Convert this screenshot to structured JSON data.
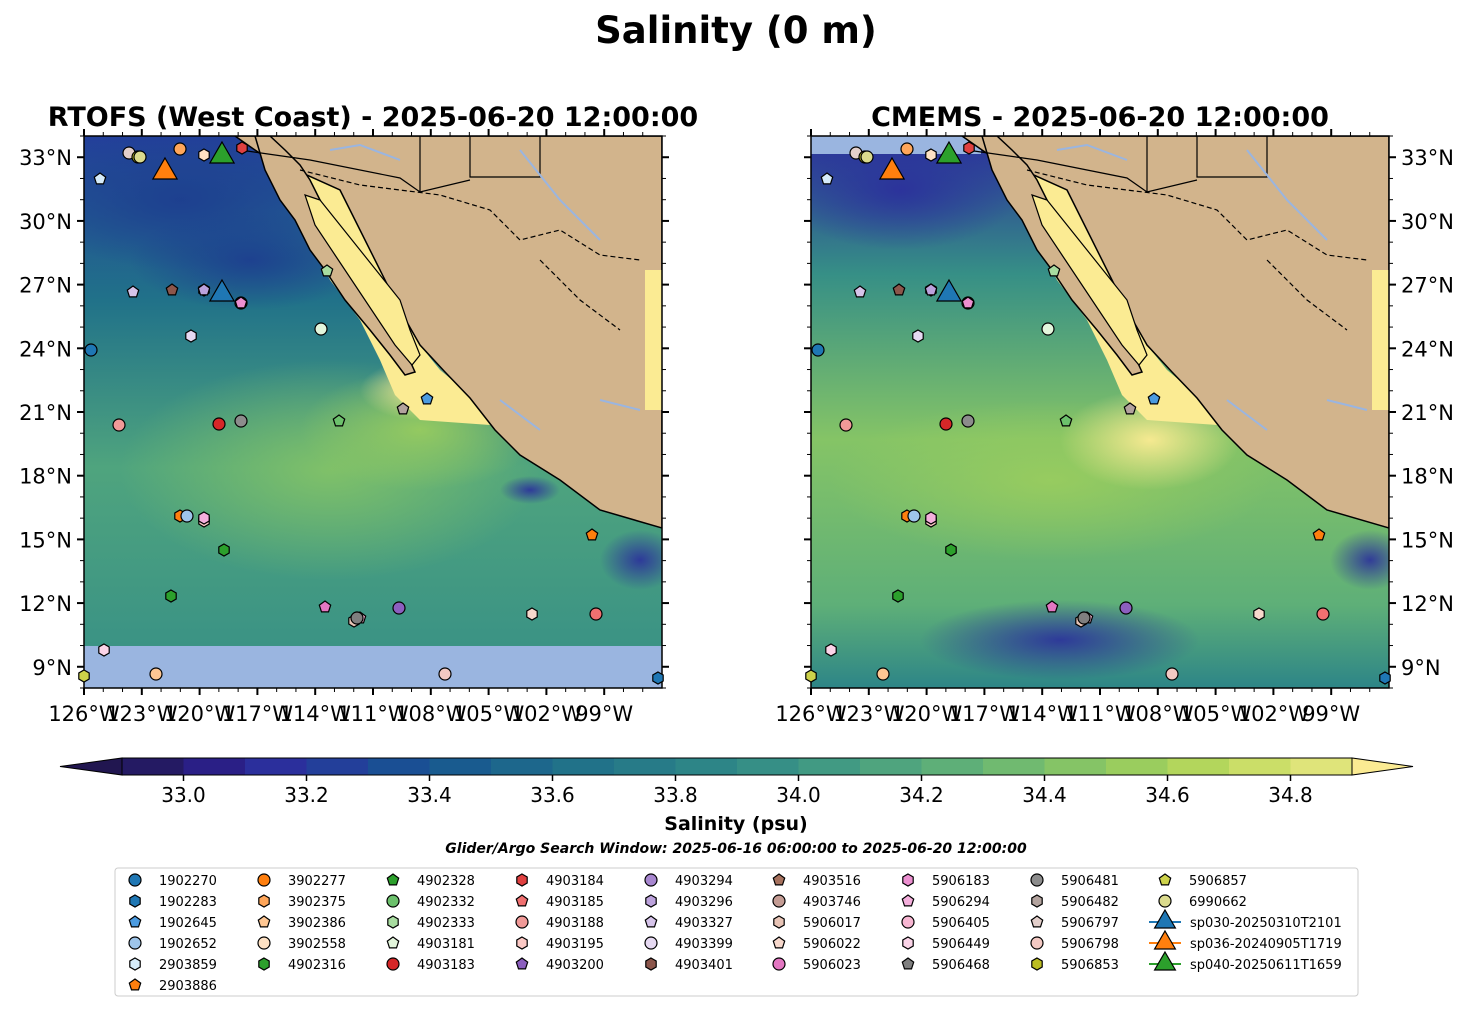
{
  "figure_title": "Salinity (0 m)",
  "colorbar": {
    "label": "Salinity (psu)",
    "ticks": [
      "33.0",
      "33.2",
      "33.4",
      "33.6",
      "33.8",
      "34.0",
      "34.2",
      "34.4",
      "34.6",
      "34.8"
    ],
    "min": 32.9,
    "max": 34.9,
    "step": 0.1,
    "colors": [
      "#241a63",
      "#2a1f86",
      "#2b2f9c",
      "#233f9a",
      "#1a4f94",
      "#195b8f",
      "#1d678c",
      "#217289",
      "#277b88",
      "#2d8587",
      "#368f86",
      "#419a83",
      "#4fa47e",
      "#5eaf78",
      "#70ba70",
      "#85c466",
      "#9acd5e",
      "#b3d65c",
      "#cbde68",
      "#dfe47a"
    ],
    "extend_high_color": "#fbeb93",
    "extend_low_color": "#211650"
  },
  "search_window": "Glider/Argo Search Window: 2025-06-16 06:00:00 to 2025-06-20 12:00:00",
  "chart_data": [
    {
      "type": "map",
      "title": "RTOFS (West Coast) - 2025-06-20 12:00:00",
      "lon_range": [
        -126,
        -96
      ],
      "lat_range": [
        8,
        34
      ],
      "x_ticks": [
        "126°W",
        "123°W",
        "120°W",
        "117°W",
        "114°W",
        "111°W",
        "108°W",
        "105°W",
        "102°W",
        "99°W"
      ],
      "y_ticks": [
        "33°N",
        "30°N",
        "27°N",
        "24°N",
        "21°N",
        "18°N",
        "15°N",
        "12°N",
        "9°N"
      ],
      "no_data_band_below_lat": 10
    },
    {
      "type": "map",
      "title": "CMEMS - 2025-06-20 12:00:00",
      "lon_range": [
        -126,
        -96
      ],
      "lat_range": [
        8,
        34
      ],
      "x_ticks": [
        "126°W",
        "123°W",
        "120°W",
        "117°W",
        "114°W",
        "111°W",
        "108°W",
        "105°W",
        "102°W",
        "99°W"
      ],
      "y_ticks": [
        "33°N",
        "30°N",
        "27°N",
        "24°N",
        "21°N",
        "18°N",
        "15°N",
        "12°N",
        "9°N"
      ]
    }
  ],
  "legend": [
    {
      "label": "1902270",
      "marker": "circle",
      "color": "#1f77b4"
    },
    {
      "label": "1902283",
      "marker": "hexagon",
      "color": "#1f77b4"
    },
    {
      "label": "1902645",
      "marker": "pentagon",
      "color": "#4b9be0"
    },
    {
      "label": "1902652",
      "marker": "circle",
      "color": "#9ec5ea"
    },
    {
      "label": "2903859",
      "marker": "hexagon",
      "color": "#d6ecfa"
    },
    {
      "label": "2903886",
      "marker": "pentagon",
      "color": "#ff7f0e"
    },
    {
      "label": "3902277",
      "marker": "circle",
      "color": "#ff7f0e"
    },
    {
      "label": "3902375",
      "marker": "hexagon",
      "color": "#ffa65a"
    },
    {
      "label": "3902386",
      "marker": "pentagon",
      "color": "#ffc793"
    },
    {
      "label": "3902558",
      "marker": "circle",
      "color": "#ffe2c4"
    },
    {
      "label": "4902316",
      "marker": "hexagon",
      "color": "#2ca02c"
    },
    {
      "label": "4902328",
      "marker": "pentagon",
      "color": "#2ca02c"
    },
    {
      "label": "4902332",
      "marker": "circle",
      "color": "#6cc16c"
    },
    {
      "label": "4902333",
      "marker": "hexagon",
      "color": "#a8dca0"
    },
    {
      "label": "4903181",
      "marker": "pentagon",
      "color": "#e3f6dc"
    },
    {
      "label": "4903183",
      "marker": "circle",
      "color": "#d62728"
    },
    {
      "label": "4903184",
      "marker": "hexagon",
      "color": "#e04040"
    },
    {
      "label": "4903185",
      "marker": "pentagon",
      "color": "#f07070"
    },
    {
      "label": "4903188",
      "marker": "circle",
      "color": "#f19a98"
    },
    {
      "label": "4903195",
      "marker": "hexagon",
      "color": "#fcc9c5"
    },
    {
      "label": "4903200",
      "marker": "pentagon",
      "color": "#8c5fbf"
    },
    {
      "label": "4903294",
      "marker": "circle",
      "color": "#a887d0"
    },
    {
      "label": "4903296",
      "marker": "hexagon",
      "color": "#bca2dc"
    },
    {
      "label": "4903327",
      "marker": "pentagon",
      "color": "#d6c4ea"
    },
    {
      "label": "4903399",
      "marker": "circle",
      "color": "#e6d9f2"
    },
    {
      "label": "4903401",
      "marker": "hexagon",
      "color": "#8c564b"
    },
    {
      "label": "4903516",
      "marker": "pentagon",
      "color": "#a7725e"
    },
    {
      "label": "4903746",
      "marker": "circle",
      "color": "#c49c94"
    },
    {
      "label": "5906017",
      "marker": "hexagon",
      "color": "#e8c4b6"
    },
    {
      "label": "5906022",
      "marker": "pentagon",
      "color": "#f7d8cc"
    },
    {
      "label": "5906023",
      "marker": "circle",
      "color": "#e377c2"
    },
    {
      "label": "5906183",
      "marker": "hexagon",
      "color": "#ec8fd0"
    },
    {
      "label": "5906294",
      "marker": "pentagon",
      "color": "#f4afdc"
    },
    {
      "label": "5906405",
      "marker": "circle",
      "color": "#f7b6d2"
    },
    {
      "label": "5906449",
      "marker": "hexagon",
      "color": "#fbd4e8"
    },
    {
      "label": "5906468",
      "marker": "pentagon",
      "color": "#7f7f7f"
    },
    {
      "label": "5906481",
      "marker": "circle",
      "color": "#8c8c8c"
    },
    {
      "label": "5906482",
      "marker": "hexagon",
      "color": "#b3a39e"
    },
    {
      "label": "5906797",
      "marker": "pentagon",
      "color": "#e3cfcb"
    },
    {
      "label": "5906798",
      "marker": "circle",
      "color": "#f3c9c3"
    },
    {
      "label": "5906853",
      "marker": "hexagon",
      "color": "#bcbd22"
    },
    {
      "label": "5906857",
      "marker": "pentagon",
      "color": "#cdd24a"
    },
    {
      "label": "6990662",
      "marker": "circle",
      "color": "#dbdb8d"
    },
    {
      "label": "sp030-20250310T2101",
      "marker": "triangle",
      "color": "#1f77b4"
    },
    {
      "label": "sp036-20240905T1719",
      "marker": "triangle",
      "color": "#ff7f0e"
    },
    {
      "label": "sp040-20250611T1659",
      "marker": "triangle",
      "color": "#2ca02c"
    }
  ]
}
